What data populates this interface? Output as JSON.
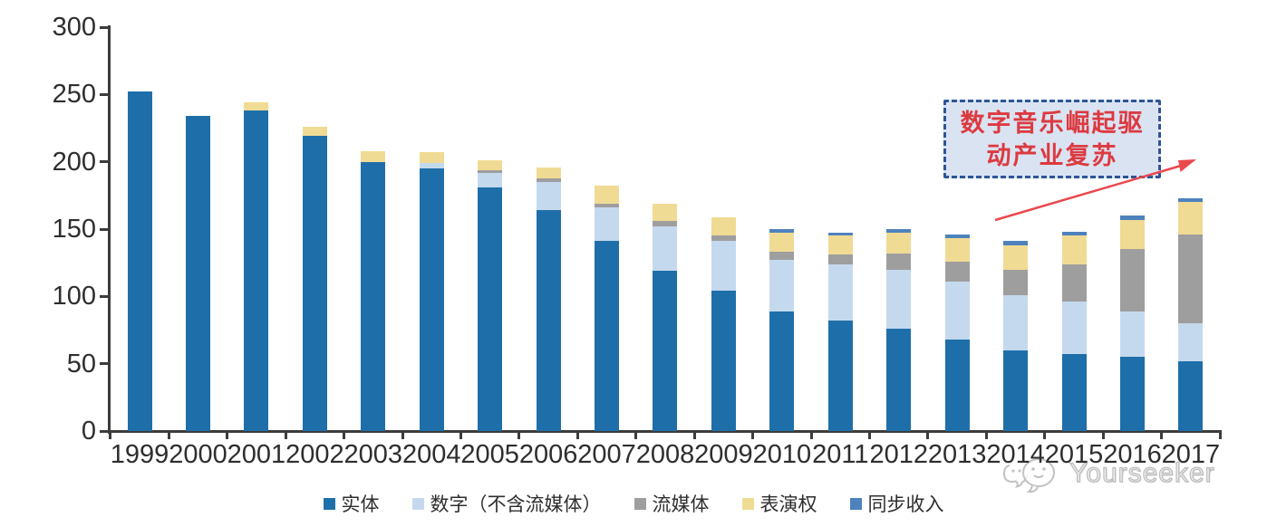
{
  "chart_data": {
    "type": "bar",
    "stacked": true,
    "categories": [
      "1999",
      "2000",
      "2001",
      "2002",
      "2003",
      "2004",
      "2005",
      "2006",
      "2007",
      "2008",
      "2009",
      "2010",
      "2011",
      "2012",
      "2013",
      "2014",
      "2015",
      "2016",
      "2017"
    ],
    "series": [
      {
        "name": "实体",
        "color": "#1e6fa9",
        "values": [
          252,
          234,
          238,
          219,
          200,
          195,
          181,
          164,
          141,
          119,
          104,
          89,
          82,
          76,
          68,
          60,
          57,
          55,
          52
        ]
      },
      {
        "name": "数字（不含流媒体）",
        "color": "#c5d9ee",
        "values": [
          0,
          0,
          0,
          0,
          0,
          4,
          11,
          21,
          25,
          33,
          37,
          38,
          42,
          44,
          43,
          41,
          39,
          34,
          28
        ]
      },
      {
        "name": "流媒体",
        "color": "#9e9e9e",
        "values": [
          0,
          0,
          0,
          0,
          0,
          0,
          2,
          3,
          3,
          4,
          4,
          6,
          7,
          12,
          15,
          19,
          28,
          46,
          66
        ]
      },
      {
        "name": "表演权",
        "color": "#f0db94",
        "values": [
          0,
          0,
          6,
          7,
          8,
          8,
          7,
          8,
          13,
          13,
          14,
          14,
          14,
          15,
          17,
          18,
          21,
          22,
          24
        ]
      },
      {
        "name": "同步收入",
        "color": "#4e82bd",
        "values": [
          0,
          0,
          0,
          0,
          0,
          0,
          0,
          0,
          0,
          0,
          0,
          3,
          2,
          3,
          3,
          3,
          3,
          3,
          3
        ]
      }
    ],
    "ylim": [
      0,
      300
    ],
    "yticks": [
      0,
      50,
      100,
      150,
      200,
      250,
      300
    ],
    "grid": false,
    "legend_position": "bottom"
  },
  "annotation": {
    "line1": "数字音乐崛起驱",
    "line2": "动产业复苏",
    "text_color": "#dc3a40",
    "box_fill": "#dae3f2",
    "border_color": "#2e5596",
    "arrow_color": "#e9484d"
  },
  "watermark": {
    "text": "Yourseeker"
  },
  "axis": {
    "line_color": "#3c3c3c",
    "label_color": "#2e2e2e"
  }
}
